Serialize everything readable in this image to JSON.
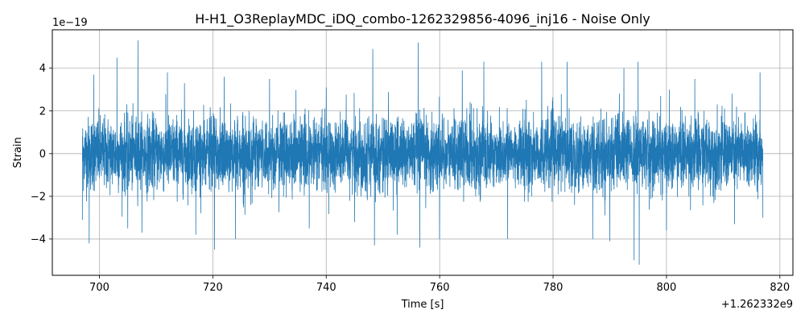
{
  "chart_data": {
    "type": "line",
    "title": "H-H1_O3ReplayMDC_iDQ_combo-1262329856-4096_inj16 - Noise Only",
    "xlabel": "Time [s]",
    "ylabel": "Strain",
    "x_offset_label": "+1.262332e9",
    "y_scale_label": "1e−19",
    "xlim": [
      691.7,
      822.3
    ],
    "ylim": [
      -5.7,
      5.8
    ],
    "xticks": [
      700,
      720,
      740,
      760,
      780,
      800,
      820
    ],
    "xtick_labels": [
      "700",
      "720",
      "740",
      "760",
      "780",
      "800",
      "820"
    ],
    "yticks": [
      -4,
      -2,
      0,
      2,
      4
    ],
    "ytick_labels": [
      "−4",
      "−2",
      "0",
      "2",
      "4"
    ],
    "grid": true,
    "line_color": "#1f77b4",
    "series": [
      {
        "x_range": [
          697.0,
          817.0
        ],
        "sampling": "dense noise, envelope shown",
        "typical_envelope": [
          -2.0,
          2.2
        ],
        "peaks": [
          {
            "x": 697.0,
            "y": -3.1
          },
          {
            "x": 698.2,
            "y": -4.2
          },
          {
            "x": 699.0,
            "y": 3.7
          },
          {
            "x": 703.1,
            "y": 4.5
          },
          {
            "x": 705.0,
            "y": -3.5
          },
          {
            "x": 706.8,
            "y": 5.3
          },
          {
            "x": 707.5,
            "y": -3.7
          },
          {
            "x": 712.0,
            "y": 3.8
          },
          {
            "x": 715.0,
            "y": 3.3
          },
          {
            "x": 717.0,
            "y": -3.8
          },
          {
            "x": 720.3,
            "y": -4.5
          },
          {
            "x": 722.0,
            "y": 3.6
          },
          {
            "x": 724.0,
            "y": -4.0
          },
          {
            "x": 730.0,
            "y": 3.5
          },
          {
            "x": 737.0,
            "y": -3.5
          },
          {
            "x": 740.0,
            "y": 3.1
          },
          {
            "x": 745.0,
            "y": -3.2
          },
          {
            "x": 748.2,
            "y": 4.9
          },
          {
            "x": 748.5,
            "y": -4.3
          },
          {
            "x": 752.5,
            "y": -3.8
          },
          {
            "x": 756.2,
            "y": 5.2
          },
          {
            "x": 756.5,
            "y": -4.4
          },
          {
            "x": 760.0,
            "y": -4.0
          },
          {
            "x": 764.0,
            "y": 3.9
          },
          {
            "x": 767.8,
            "y": 4.3
          },
          {
            "x": 772.0,
            "y": -4.0
          },
          {
            "x": 778.0,
            "y": 4.3
          },
          {
            "x": 782.5,
            "y": 4.3
          },
          {
            "x": 787.0,
            "y": -4.0
          },
          {
            "x": 790.0,
            "y": -4.1
          },
          {
            "x": 792.5,
            "y": 4.0
          },
          {
            "x": 794.3,
            "y": -5.0
          },
          {
            "x": 795.2,
            "y": -5.2
          },
          {
            "x": 795.0,
            "y": 4.3
          },
          {
            "x": 800.0,
            "y": -3.6
          },
          {
            "x": 805.0,
            "y": 3.5
          },
          {
            "x": 812.0,
            "y": -3.3
          },
          {
            "x": 816.5,
            "y": 3.8
          },
          {
            "x": 817.0,
            "y": -3.0
          }
        ]
      }
    ]
  }
}
